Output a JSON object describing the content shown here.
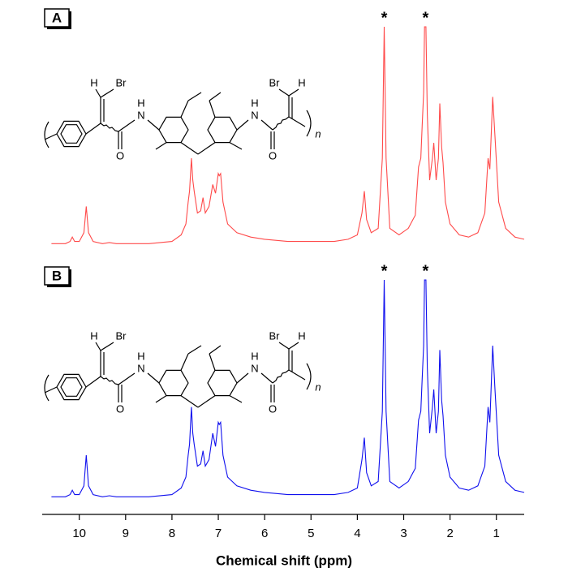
{
  "chart_data": {
    "type": "line",
    "xlabel": "Chemical shift (ppm)",
    "xlim": [
      10.8,
      0.4
    ],
    "xticks": [
      10,
      9,
      8,
      7,
      6,
      5,
      4,
      3,
      2,
      1
    ],
    "ylim": [
      0,
      100
    ],
    "x": [
      10.6,
      10.3,
      10.2,
      10.15,
      10.1,
      10.0,
      9.9,
      9.85,
      9.8,
      9.7,
      9.5,
      9.35,
      9.2,
      9.0,
      8.5,
      8.0,
      7.8,
      7.7,
      7.65,
      7.62,
      7.58,
      7.55,
      7.52,
      7.45,
      7.38,
      7.33,
      7.28,
      7.2,
      7.12,
      7.06,
      7.0,
      6.98,
      6.95,
      6.9,
      6.8,
      6.6,
      6.3,
      6.0,
      5.5,
      5.0,
      4.5,
      4.2,
      4.0,
      3.9,
      3.85,
      3.8,
      3.7,
      3.55,
      3.46,
      3.42,
      3.38,
      3.3,
      3.1,
      2.9,
      2.75,
      2.68,
      2.63,
      2.6,
      2.57,
      2.55,
      2.52,
      2.49,
      2.44,
      2.38,
      2.35,
      2.3,
      2.25,
      2.22,
      2.18,
      2.15,
      2.1,
      2.0,
      1.8,
      1.6,
      1.4,
      1.25,
      1.18,
      1.14,
      1.08,
      1.03,
      0.95,
      0.8,
      0.6,
      0.4
    ],
    "series": [
      {
        "name": "A",
        "color": "#ff4a4a",
        "values": [
          1,
          1,
          2,
          4,
          2,
          2,
          6,
          18,
          6,
          2,
          1,
          1.5,
          1,
          1,
          1,
          2,
          5,
          10,
          20,
          25,
          40,
          30,
          25,
          15,
          16,
          22,
          15,
          18,
          28,
          24,
          33,
          32,
          33,
          20,
          10,
          6,
          4,
          3,
          2,
          2,
          2,
          3,
          5,
          15,
          25,
          12,
          6,
          8,
          40,
          100,
          40,
          8,
          5,
          8,
          14,
          36,
          40,
          55,
          70,
          100,
          100,
          60,
          30,
          40,
          47,
          30,
          40,
          65,
          45,
          38,
          20,
          10,
          5,
          4,
          6,
          15,
          40,
          35,
          68,
          50,
          20,
          8,
          4,
          3
        ],
        "annotations": [
          {
            "text": "*",
            "x": 3.42
          },
          {
            "text": "*",
            "x": 2.53
          }
        ]
      },
      {
        "name": "B",
        "color": "#1010ee",
        "values": [
          1,
          1,
          2,
          4,
          2,
          2,
          6,
          20,
          6,
          2,
          1,
          1.5,
          1,
          1,
          1,
          2,
          5,
          10,
          20,
          25,
          42,
          30,
          25,
          15,
          16,
          22,
          15,
          18,
          30,
          24,
          35,
          34,
          35,
          20,
          10,
          6,
          4,
          3,
          2,
          2,
          2,
          3,
          5,
          18,
          28,
          12,
          6,
          8,
          40,
          100,
          40,
          8,
          5,
          8,
          14,
          36,
          40,
          55,
          70,
          100,
          100,
          60,
          30,
          42,
          50,
          30,
          40,
          68,
          45,
          38,
          20,
          10,
          5,
          4,
          6,
          15,
          42,
          35,
          70,
          50,
          20,
          8,
          4,
          3
        ],
        "annotations": [
          {
            "text": "*",
            "x": 3.42
          },
          {
            "text": "*",
            "x": 2.53
          }
        ]
      }
    ],
    "structure_labels": [
      "H",
      "Br",
      "H",
      "N",
      "O",
      "H",
      "N",
      "O",
      "Br",
      "H",
      "n"
    ]
  }
}
